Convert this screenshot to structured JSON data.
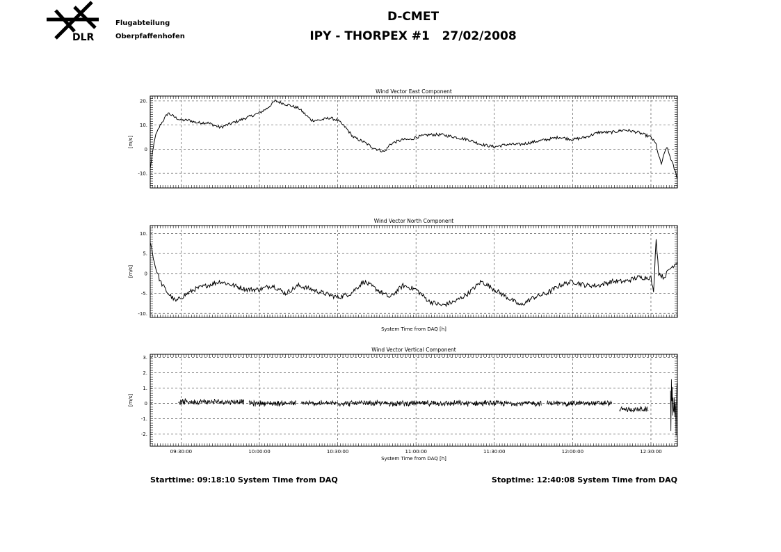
{
  "header": {
    "logo_text": "DLR",
    "org_line1": "Flugabteilung",
    "org_line2": "Oberpfaffenhofen",
    "title_line1": "D-CMET",
    "title_line2": "IPY - THORPEX #1   27/02/2008"
  },
  "footer": {
    "start": "Starttime: 09:18:10 System Time from DAQ",
    "stop": "Stoptime: 12:40:08 System Time from DAQ"
  },
  "colors": {
    "line": "#000000",
    "grid": "#555555",
    "background": "#ffffff"
  },
  "chart_data": [
    {
      "type": "line",
      "title": "Wind Vector East Component",
      "ylabel": "[m/s]",
      "xlabel": "",
      "xlim": [
        "09:18:10",
        "12:40:08"
      ],
      "ylim": [
        -16,
        22
      ],
      "yticks": [
        20,
        10,
        0,
        -10
      ],
      "ytick_labels": [
        "20.",
        "10.",
        "0",
        "-10."
      ],
      "xgrid": [
        "09:30:00",
        "10:00:00",
        "10:30:00",
        "11:00:00",
        "11:30:00",
        "12:00:00",
        "12:30:00"
      ],
      "x": [
        "09:18:10",
        "09:19:00",
        "09:20:00",
        "09:22:00",
        "09:25:00",
        "09:28:00",
        "09:30:00",
        "09:33:00",
        "09:36:00",
        "09:40:00",
        "09:45:00",
        "09:50:00",
        "09:55:00",
        "10:00:00",
        "10:03:00",
        "10:06:00",
        "10:09:00",
        "10:12:00",
        "10:15:00",
        "10:18:00",
        "10:20:00",
        "10:23:00",
        "10:27:00",
        "10:30:00",
        "10:33:00",
        "10:36:00",
        "10:40:00",
        "10:43:00",
        "10:45:00",
        "10:48:00",
        "10:50:00",
        "10:52:00",
        "10:55:00",
        "10:58:00",
        "11:00:00",
        "11:05:00",
        "11:10:00",
        "11:15:00",
        "11:20:00",
        "11:25:00",
        "11:30:00",
        "11:35:00",
        "11:40:00",
        "11:45:00",
        "11:50:00",
        "11:55:00",
        "12:00:00",
        "12:05:00",
        "12:10:00",
        "12:15:00",
        "12:20:00",
        "12:25:00",
        "12:30:00",
        "12:32:00",
        "12:33:00",
        "12:34:00",
        "12:36:00",
        "12:38:00",
        "12:40:08"
      ],
      "y": [
        -8,
        -2,
        5,
        10,
        15,
        13,
        12,
        12,
        11,
        11,
        9,
        11,
        13,
        15,
        17,
        20,
        19,
        18,
        17,
        14,
        12,
        12,
        13,
        12,
        9,
        5,
        3,
        1,
        0,
        -1,
        2,
        3,
        4,
        4,
        5,
        6,
        6,
        5,
        4,
        2,
        1,
        2,
        2,
        3,
        4,
        5,
        4,
        5,
        7,
        7,
        8,
        7,
        5,
        2,
        -3,
        -6,
        1,
        -5,
        -12
      ]
    },
    {
      "type": "line",
      "title": "Wind Vector North Component",
      "ylabel": "[m/s]",
      "xlabel": "System Time from DAQ [h]",
      "xlim": [
        "09:18:10",
        "12:40:08"
      ],
      "ylim": [
        -11,
        12
      ],
      "yticks": [
        10,
        5,
        0,
        -5,
        -10
      ],
      "ytick_labels": [
        "10.",
        "5.",
        "0",
        "-5.",
        "-10."
      ],
      "xgrid": [
        "09:30:00",
        "10:00:00",
        "10:30:00",
        "11:00:00",
        "11:30:00",
        "12:00:00",
        "12:30:00"
      ],
      "x": [
        "09:18:10",
        "09:20:00",
        "09:22:00",
        "09:25:00",
        "09:28:00",
        "09:30:00",
        "09:35:00",
        "09:40:00",
        "09:45:00",
        "09:50:00",
        "09:55:00",
        "10:00:00",
        "10:05:00",
        "10:10:00",
        "10:15:00",
        "10:20:00",
        "10:25:00",
        "10:30:00",
        "10:35:00",
        "10:40:00",
        "10:45:00",
        "10:50:00",
        "10:55:00",
        "11:00:00",
        "11:05:00",
        "11:10:00",
        "11:15:00",
        "11:20:00",
        "11:25:00",
        "11:30:00",
        "11:35:00",
        "11:40:00",
        "11:45:00",
        "11:50:00",
        "11:55:00",
        "12:00:00",
        "12:05:00",
        "12:10:00",
        "12:15:00",
        "12:20:00",
        "12:25:00",
        "12:30:00",
        "12:31:00",
        "12:32:00",
        "12:33:00",
        "12:35:00",
        "12:37:00",
        "12:40:08"
      ],
      "y": [
        8,
        2,
        -2,
        -5,
        -7,
        -6,
        -4,
        -3,
        -2,
        -3,
        -4,
        -4,
        -3,
        -5,
        -3,
        -4,
        -5,
        -6,
        -5,
        -2,
        -4,
        -6,
        -3,
        -4,
        -7,
        -8,
        -7,
        -5,
        -2,
        -4,
        -6,
        -8,
        -6,
        -5,
        -3,
        -2,
        -3,
        -3,
        -2,
        -2,
        -1,
        -1,
        -5,
        9,
        0,
        -1,
        1,
        3
      ]
    },
    {
      "type": "line",
      "title": "Wind Vector Vertical Component",
      "ylabel": "[m/s]",
      "xlabel": "System Time from DAQ [h]",
      "xlim": [
        "09:18:10",
        "12:40:08"
      ],
      "ylim": [
        -2.8,
        3.2
      ],
      "yticks": [
        3,
        2,
        1,
        0,
        -1,
        -2
      ],
      "ytick_labels": [
        "3.",
        "2.",
        "1.",
        "0",
        "-1.",
        "-2."
      ],
      "xticks": [
        "09:30:00",
        "10:00:00",
        "10:30:00",
        "11:00:00",
        "11:30:00",
        "12:00:00",
        "12:30:00"
      ],
      "noise_amplitude": 0.15,
      "segments": [
        {
          "start": "09:29:00",
          "end": "09:54:00",
          "mean": 0.1
        },
        {
          "start": "09:56:00",
          "end": "10:14:00",
          "mean": 0.0
        },
        {
          "start": "10:16:00",
          "end": "11:48:00",
          "mean": 0.0
        },
        {
          "start": "11:50:00",
          "end": "12:15:00",
          "mean": 0.0
        },
        {
          "start": "12:18:00",
          "end": "12:29:00",
          "mean": -0.4
        },
        {
          "start": "12:37:30",
          "end": "12:40:08",
          "mean": 0.0,
          "amplitude": 1.6
        }
      ]
    }
  ]
}
